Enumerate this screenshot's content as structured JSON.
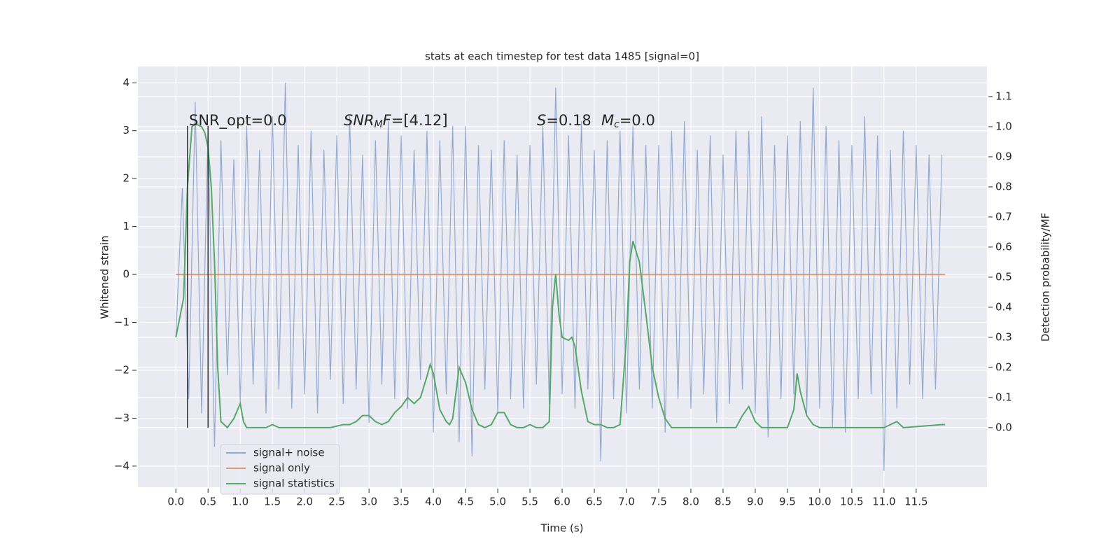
{
  "chart_data": {
    "type": "line",
    "title": "stats at each timestep for test data 1485 [signal=0]",
    "xlabel": "Time (s)",
    "ylabel": "Whitened strain",
    "y2label": "Detection probability/MF",
    "xlim": [
      -0.59,
      12.6
    ],
    "ylim": [
      -4.44,
      4.34
    ],
    "y2lim": [
      -0.198,
      1.2
    ],
    "xticks": [
      {
        "value": 0,
        "label": "0.0"
      },
      0.5,
      {
        "value": 1,
        "label": "1.0"
      },
      1.5,
      {
        "value": 2,
        "label": "2.0"
      },
      2.5,
      {
        "value": 3,
        "label": "3.0"
      },
      3.5,
      {
        "value": 4,
        "label": "4.0"
      },
      4.5,
      {
        "value": 5,
        "label": "5.0"
      },
      5.5,
      {
        "value": 6,
        "label": "6.0"
      },
      6.5,
      {
        "value": 7,
        "label": "7.0"
      },
      7.5,
      {
        "value": 8,
        "label": "8.0"
      },
      8.5,
      {
        "value": 9,
        "label": "9.0"
      },
      9.5,
      {
        "value": 10,
        "label": "10.0"
      },
      10.5,
      {
        "value": 11,
        "label": "11.0"
      },
      11.5
    ],
    "yticks": [
      {
        "value": -4,
        "label": "−4"
      },
      {
        "value": -3,
        "label": "−3"
      },
      {
        "value": -2,
        "label": "−2"
      },
      {
        "value": -1,
        "label": "−1"
      },
      0,
      1,
      2,
      3,
      4
    ],
    "y2ticks": [
      {
        "value": 0,
        "label": "0.0"
      },
      0.1,
      0.2,
      0.3,
      0.4,
      0.5,
      0.6,
      0.7,
      0.8,
      0.9,
      {
        "value": 1,
        "label": "1.0"
      },
      1.1
    ],
    "grid": true,
    "legend_loc": "lower left",
    "series": [
      {
        "name": "signal+ noise",
        "color": "#4c72b0",
        "alpha": 0.55,
        "x": [
          0,
          0.1,
          0.2,
          0.3,
          0.4,
          0.5,
          0.6,
          0.7,
          0.8,
          0.9,
          1,
          1.1,
          1.2,
          1.3,
          1.4,
          1.5,
          1.6,
          1.7,
          1.8,
          1.9,
          2,
          2.1,
          2.2,
          2.3,
          2.4,
          2.5,
          2.6,
          2.7,
          2.8,
          2.9,
          3,
          3.1,
          3.2,
          3.3,
          3.4,
          3.5,
          3.6,
          3.7,
          3.8,
          3.9,
          4,
          4.1,
          4.2,
          4.3,
          4.4,
          4.5,
          4.6,
          4.7,
          4.8,
          4.9,
          5,
          5.1,
          5.2,
          5.3,
          5.4,
          5.5,
          5.6,
          5.7,
          5.8,
          5.9,
          6,
          6.1,
          6.2,
          6.3,
          6.4,
          6.5,
          6.6,
          6.7,
          6.8,
          6.9,
          7,
          7.1,
          7.2,
          7.3,
          7.4,
          7.5,
          7.6,
          7.7,
          7.8,
          7.9,
          8,
          8.1,
          8.2,
          8.3,
          8.4,
          8.5,
          8.6,
          8.7,
          8.8,
          8.9,
          9,
          9.1,
          9.2,
          9.3,
          9.4,
          9.5,
          9.6,
          9.7,
          9.8,
          9.9,
          10,
          10.1,
          10.2,
          10.3,
          10.4,
          10.5,
          10.6,
          10.7,
          10.8,
          10.9,
          11,
          11.1,
          11.2,
          11.3,
          11.4,
          11.5,
          11.6,
          11.7,
          11.8,
          11.9
        ],
        "values": [
          -1.3,
          1.8,
          -2.6,
          3.6,
          -2.9,
          3.1,
          -3.6,
          2.8,
          -2.1,
          2.4,
          -2.7,
          3.1,
          -2.3,
          2.6,
          -2.9,
          3.3,
          -2.4,
          4.0,
          -2.8,
          2.7,
          -2.5,
          3.0,
          -2.9,
          2.6,
          -2.2,
          2.9,
          -2.7,
          3.3,
          -2.4,
          2.5,
          -3.1,
          2.8,
          -2.3,
          3.2,
          -2.6,
          2.9,
          -2.8,
          2.6,
          -2.2,
          3.0,
          -3.3,
          2.8,
          -2.5,
          3.1,
          -3.5,
          3.1,
          -3.8,
          2.7,
          -2.4,
          2.6,
          -2.9,
          2.8,
          -2.6,
          2.5,
          -2.8,
          2.7,
          -2.3,
          3.1,
          -2.7,
          3.9,
          -2.5,
          2.9,
          -2.8,
          3.2,
          -2.4,
          2.6,
          -3.9,
          2.8,
          -2.6,
          3.0,
          -2.9,
          3.1,
          -2.4,
          2.7,
          -2.8,
          2.7,
          -3.3,
          3.0,
          -2.6,
          3.2,
          -2.8,
          2.6,
          -2.5,
          2.9,
          -3.1,
          2.5,
          -2.7,
          3.0,
          -2.4,
          3.0,
          -2.9,
          3.3,
          -3.4,
          2.7,
          -2.6,
          2.9,
          -2.5,
          3.2,
          -2.9,
          3.9,
          -2.8,
          3.1,
          -3.2,
          2.8,
          -3.3,
          2.7,
          -2.6,
          3.3,
          -2.5,
          2.9,
          -4.1,
          2.6,
          -2.8,
          3.0,
          -2.3,
          2.7,
          -2.6,
          2.5,
          -2.4,
          2.5
        ]
      },
      {
        "name": "signal only",
        "color": "#dd8452",
        "alpha": 0.8,
        "x": [
          0,
          11.95
        ],
        "values": [
          0,
          0
        ]
      },
      {
        "name": "signal statistics",
        "color": "#55a868",
        "alpha": 1,
        "axis": "y2",
        "x": [
          0,
          0.12,
          0.18,
          0.25,
          0.3,
          0.4,
          0.45,
          0.5,
          0.55,
          0.6,
          0.65,
          0.7,
          0.8,
          0.9,
          1.0,
          1.05,
          1.1,
          1.2,
          1.3,
          1.4,
          1.5,
          1.6,
          1.8,
          2.0,
          2.2,
          2.4,
          2.6,
          2.7,
          2.8,
          2.9,
          3.0,
          3.1,
          3.2,
          3.3,
          3.4,
          3.5,
          3.6,
          3.7,
          3.8,
          3.9,
          3.95,
          4.0,
          4.1,
          4.2,
          4.25,
          4.3,
          4.4,
          4.5,
          4.6,
          4.7,
          4.8,
          4.9,
          5.0,
          5.1,
          5.2,
          5.3,
          5.4,
          5.5,
          5.6,
          5.7,
          5.8,
          5.85,
          5.9,
          5.95,
          6.0,
          6.1,
          6.15,
          6.2,
          6.3,
          6.4,
          6.5,
          6.6,
          6.7,
          6.8,
          6.9,
          7.0,
          7.05,
          7.1,
          7.2,
          7.3,
          7.4,
          7.5,
          7.6,
          7.7,
          8.0,
          8.5,
          8.7,
          8.8,
          8.9,
          9.0,
          9.1,
          9.3,
          9.5,
          9.6,
          9.65,
          9.7,
          9.8,
          9.9,
          10.0,
          10.5,
          11.0,
          11.1,
          11.2,
          11.3,
          11.9,
          11.95
        ],
        "values": [
          0.3,
          0.43,
          0.8,
          1.0,
          1.01,
          1.0,
          0.98,
          0.93,
          0.8,
          0.55,
          0.2,
          0.02,
          0.0,
          0.03,
          0.08,
          0.02,
          0.0,
          0.0,
          0.0,
          0.0,
          0.01,
          0.0,
          0.0,
          0.0,
          0.0,
          0.0,
          0.01,
          0.01,
          0.02,
          0.04,
          0.04,
          0.02,
          0.01,
          0.02,
          0.05,
          0.07,
          0.1,
          0.08,
          0.1,
          0.17,
          0.21,
          0.18,
          0.06,
          0.02,
          0.01,
          0.03,
          0.2,
          0.15,
          0.06,
          0.01,
          0.0,
          0.01,
          0.05,
          0.05,
          0.01,
          0.0,
          0.0,
          0.01,
          0.0,
          0.0,
          0.02,
          0.4,
          0.51,
          0.38,
          0.3,
          0.29,
          0.3,
          0.27,
          0.12,
          0.02,
          0.01,
          0.01,
          0.0,
          0.0,
          0.01,
          0.3,
          0.55,
          0.62,
          0.55,
          0.38,
          0.2,
          0.1,
          0.03,
          0.0,
          0.0,
          0.0,
          0.0,
          0.04,
          0.07,
          0.02,
          0.0,
          0.0,
          0.0,
          0.06,
          0.18,
          0.12,
          0.04,
          0.01,
          0.0,
          0.0,
          0.0,
          0.01,
          0.02,
          0.0,
          0.01,
          0.01
        ]
      }
    ],
    "vlines": [
      0.18,
      0.5
    ],
    "vline_range": [
      -3.2,
      3.1
    ],
    "vline_color": "#333333",
    "annotations": [
      [
        {
          "text": "SNR_opt=0.0"
        }
      ],
      [
        {
          "text": "SNR",
          "italic": true
        },
        {
          "text": "M",
          "italic": true,
          "sub": true
        },
        {
          "text": "F",
          "italic": true
        },
        {
          "text": "=[4.12]"
        }
      ],
      [
        {
          "text": "S",
          "italic": true
        },
        {
          "text": "=0.18"
        }
      ],
      [
        {
          "text": "M",
          "italic": true
        },
        {
          "text": "c",
          "italic": true,
          "sub": true
        },
        {
          "text": "=0.0"
        }
      ]
    ]
  }
}
